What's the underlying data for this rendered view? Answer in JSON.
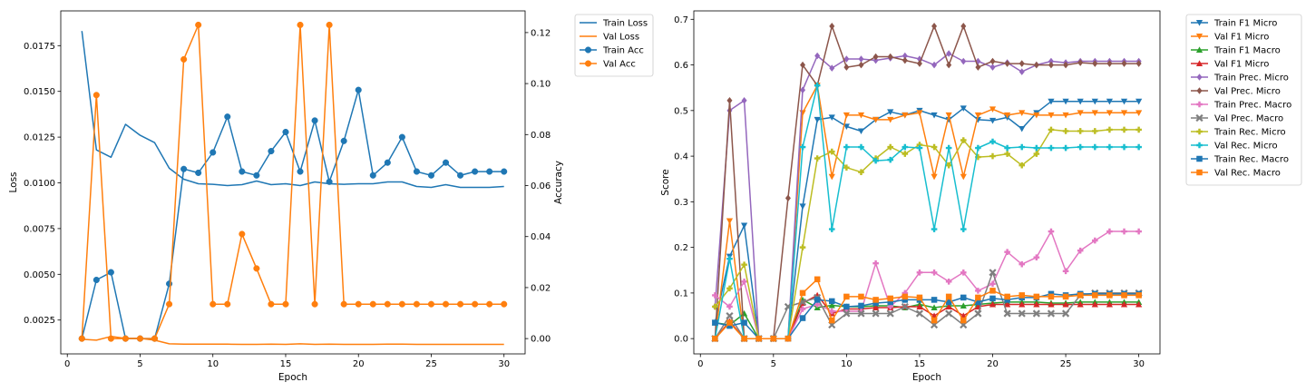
{
  "chart_data": [
    {
      "type": "line",
      "xlabel": "Epoch",
      "ylabel": "Loss",
      "y2label": "Accuracy",
      "xlim": [
        -0.45,
        31.45
      ],
      "ylim": [
        0.00065,
        0.0194
      ],
      "y2lim": [
        -0.006,
        0.1285
      ],
      "xticks": [
        0,
        5,
        10,
        15,
        20,
        25,
        30
      ],
      "yticks": [
        0.0025,
        0.005,
        0.0075,
        0.01,
        0.0125,
        0.015,
        0.0175
      ],
      "ytick_labels": [
        "0.0025",
        "0.0050",
        "0.0075",
        "0.0100",
        "0.0125",
        "0.0150",
        "0.0175"
      ],
      "y2ticks": [
        0.0,
        0.02,
        0.04,
        0.06,
        0.08,
        0.1,
        0.12
      ],
      "y2tick_labels": [
        "0.00",
        "0.02",
        "0.04",
        "0.06",
        "0.08",
        "0.10",
        "0.12"
      ],
      "legend_position": "outside-right-top",
      "x": [
        1,
        2,
        3,
        4,
        5,
        6,
        7,
        8,
        9,
        10,
        11,
        12,
        13,
        14,
        15,
        16,
        17,
        18,
        19,
        20,
        21,
        22,
        23,
        24,
        25,
        26,
        27,
        28,
        29,
        30
      ],
      "series": [
        {
          "name": "Train Loss",
          "axis": "left",
          "color": "#1f77b4",
          "marker": "none",
          "values": [
            0.0183,
            0.0118,
            0.0114,
            0.0132,
            0.0126,
            0.0122,
            0.0108,
            0.0102,
            0.00995,
            0.00992,
            0.00985,
            0.0099,
            0.0101,
            0.0099,
            0.00995,
            0.00985,
            0.01005,
            0.00995,
            0.00992,
            0.00995,
            0.00995,
            0.01005,
            0.01005,
            0.0098,
            0.00975,
            0.0099,
            0.00975,
            0.00975,
            0.00975,
            0.0098
          ]
        },
        {
          "name": "Val Loss",
          "axis": "left",
          "color": "#ff7f0e",
          "marker": "none",
          "values": [
            0.00145,
            0.0014,
            0.0016,
            0.0015,
            0.0015,
            0.0014,
            0.0012,
            0.00118,
            0.00118,
            0.00118,
            0.00118,
            0.00117,
            0.00117,
            0.00118,
            0.00117,
            0.0012,
            0.00117,
            0.00118,
            0.00117,
            0.00117,
            0.00117,
            0.00118,
            0.00118,
            0.00117,
            0.00117,
            0.00117,
            0.00117,
            0.00117,
            0.00117,
            0.00117
          ]
        },
        {
          "name": "Train Acc",
          "axis": "right",
          "color": "#1f77b4",
          "marker": "circle",
          "values": [
            0.0,
            0.023,
            0.026,
            0.0,
            0.0,
            0.0,
            0.0215,
            0.0665,
            0.065,
            0.073,
            0.087,
            0.0655,
            0.064,
            0.0735,
            0.081,
            0.0655,
            0.0855,
            0.0615,
            0.0775,
            0.0975,
            0.064,
            0.069,
            0.079,
            0.0655,
            0.064,
            0.069,
            0.064,
            0.0655,
            0.0655,
            0.0655
          ]
        },
        {
          "name": "Val Acc",
          "axis": "right",
          "color": "#ff7f0e",
          "marker": "circle",
          "values": [
            0.0,
            0.0955,
            0.0,
            0.0,
            0.0,
            0.0,
            0.0135,
            0.1095,
            0.123,
            0.0135,
            0.0135,
            0.041,
            0.0275,
            0.0135,
            0.0135,
            0.123,
            0.0135,
            0.123,
            0.0135,
            0.0135,
            0.0135,
            0.0135,
            0.0135,
            0.0135,
            0.0135,
            0.0135,
            0.0135,
            0.0135,
            0.0135,
            0.0135
          ]
        }
      ]
    },
    {
      "type": "line",
      "xlabel": "Epoch",
      "ylabel": "Score",
      "xlim": [
        -0.45,
        31.45
      ],
      "ylim": [
        -0.0335,
        0.7185
      ],
      "xticks": [
        0,
        5,
        10,
        15,
        20,
        25,
        30
      ],
      "yticks": [
        0.0,
        0.1,
        0.2,
        0.3,
        0.4,
        0.5,
        0.6,
        0.7
      ],
      "ytick_labels": [
        "0.0",
        "0.1",
        "0.2",
        "0.3",
        "0.4",
        "0.5",
        "0.6",
        "0.7"
      ],
      "legend_position": "outside-right-top",
      "x": [
        1,
        2,
        3,
        4,
        5,
        6,
        7,
        8,
        9,
        10,
        11,
        12,
        13,
        14,
        15,
        16,
        17,
        18,
        19,
        20,
        21,
        22,
        23,
        24,
        25,
        26,
        27,
        28,
        29,
        30
      ],
      "series": [
        {
          "name": "Train F1 Micro",
          "color": "#1f77b4",
          "marker": "tri_down",
          "values": [
            0.035,
            0.18,
            0.248,
            0.0,
            0.0,
            0.0,
            0.29,
            0.48,
            0.485,
            0.465,
            0.455,
            0.48,
            0.497,
            0.49,
            0.5,
            0.49,
            0.48,
            0.505,
            0.48,
            0.478,
            0.485,
            0.46,
            0.495,
            0.52,
            0.52,
            0.52,
            0.52,
            0.52,
            0.52,
            0.52
          ]
        },
        {
          "name": "Val F1 Micro",
          "color": "#ff7f0e",
          "marker": "tri_down",
          "values": [
            0.0,
            0.258,
            0.0,
            0.0,
            0.0,
            0.0,
            0.495,
            0.555,
            0.355,
            0.49,
            0.49,
            0.48,
            0.48,
            0.49,
            0.495,
            0.355,
            0.49,
            0.355,
            0.49,
            0.503,
            0.49,
            0.495,
            0.49,
            0.49,
            0.49,
            0.495,
            0.495,
            0.495,
            0.495,
            0.495
          ]
        },
        {
          "name": "Train F1 Macro",
          "color": "#2ca02c",
          "marker": "tri_up",
          "values": [
            0.035,
            0.03,
            0.055,
            0.0,
            0.0,
            0.0,
            0.085,
            0.068,
            0.073,
            0.07,
            0.07,
            0.072,
            0.072,
            0.068,
            0.075,
            0.068,
            0.072,
            0.072,
            0.075,
            0.078,
            0.08,
            0.08,
            0.08,
            0.078,
            0.078,
            0.08,
            0.08,
            0.08,
            0.08,
            0.08
          ]
        },
        {
          "name": "Val F1 Micro",
          "color": "#d62728",
          "marker": "tri_up",
          "values": [
            0.0,
            0.038,
            0.0,
            0.0,
            0.0,
            0.0,
            0.078,
            0.095,
            0.055,
            0.065,
            0.065,
            0.068,
            0.068,
            0.07,
            0.07,
            0.05,
            0.07,
            0.05,
            0.07,
            0.075,
            0.075,
            0.075,
            0.075,
            0.075,
            0.075,
            0.075,
            0.075,
            0.075,
            0.075,
            0.075
          ]
        },
        {
          "name": "Train Prec. Micro",
          "color": "#9467bd",
          "marker": "diamond",
          "values": [
            0.07,
            0.5,
            0.522,
            0.0,
            0.0,
            0.0,
            0.545,
            0.62,
            0.593,
            0.613,
            0.613,
            0.61,
            0.615,
            0.62,
            0.613,
            0.6,
            0.625,
            0.608,
            0.608,
            0.595,
            0.605,
            0.585,
            0.6,
            0.608,
            0.605,
            0.608,
            0.608,
            0.608,
            0.608,
            0.608
          ]
        },
        {
          "name": "Val Prec. Micro",
          "color": "#8c564b",
          "marker": "diamond",
          "values": [
            0.0,
            0.522,
            0.0,
            0.0,
            0.0,
            0.308,
            0.6,
            0.555,
            0.685,
            0.595,
            0.6,
            0.618,
            0.618,
            0.61,
            0.603,
            0.685,
            0.6,
            0.685,
            0.595,
            0.608,
            0.603,
            0.603,
            0.6,
            0.6,
            0.6,
            0.605,
            0.603,
            0.603,
            0.603,
            0.603
          ]
        },
        {
          "name": "Train Prec. Macro",
          "color": "#e377c2",
          "marker": "plus",
          "values": [
            0.095,
            0.07,
            0.125,
            0.0,
            0.0,
            0.0,
            0.065,
            0.075,
            0.06,
            0.06,
            0.06,
            0.165,
            0.07,
            0.1,
            0.145,
            0.145,
            0.125,
            0.145,
            0.105,
            0.12,
            0.19,
            0.163,
            0.178,
            0.235,
            0.148,
            0.193,
            0.215,
            0.235,
            0.235,
            0.235
          ]
        },
        {
          "name": "Val Prec. Macro",
          "color": "#7f7f7f",
          "marker": "x",
          "values": [
            0.0,
            0.05,
            0.0,
            0.0,
            0.0,
            0.07,
            0.08,
            0.09,
            0.03,
            0.055,
            0.055,
            0.055,
            0.055,
            0.07,
            0.055,
            0.03,
            0.055,
            0.03,
            0.055,
            0.145,
            0.055,
            0.055,
            0.055,
            0.055,
            0.055,
            0.095,
            0.1,
            0.1,
            0.1,
            0.1
          ]
        },
        {
          "name": "Train Rec. Micro",
          "color": "#bcbd22",
          "marker": "plus",
          "values": [
            0.07,
            0.11,
            0.162,
            0.0,
            0.0,
            0.0,
            0.2,
            0.395,
            0.41,
            0.375,
            0.365,
            0.395,
            0.42,
            0.405,
            0.425,
            0.42,
            0.38,
            0.435,
            0.398,
            0.4,
            0.405,
            0.38,
            0.405,
            0.458,
            0.455,
            0.455,
            0.455,
            0.458,
            0.458,
            0.458
          ]
        },
        {
          "name": "Val Rec. Micro",
          "color": "#17becf",
          "marker": "plus",
          "values": [
            0.0,
            0.175,
            0.0,
            0.0,
            0.0,
            0.0,
            0.42,
            0.555,
            0.24,
            0.42,
            0.42,
            0.39,
            0.392,
            0.42,
            0.418,
            0.24,
            0.418,
            0.24,
            0.418,
            0.432,
            0.418,
            0.42,
            0.418,
            0.418,
            0.418,
            0.42,
            0.42,
            0.42,
            0.42,
            0.42
          ]
        },
        {
          "name": "Train Rec. Macro",
          "color": "#1f77b4",
          "marker": "square",
          "values": [
            0.035,
            0.028,
            0.035,
            0.0,
            0.0,
            0.0,
            0.045,
            0.085,
            0.082,
            0.07,
            0.072,
            0.078,
            0.08,
            0.085,
            0.085,
            0.085,
            0.08,
            0.09,
            0.08,
            0.088,
            0.085,
            0.09,
            0.09,
            0.098,
            0.095,
            0.098,
            0.098,
            0.098,
            0.098,
            0.098
          ]
        },
        {
          "name": "Val Rec. Macro",
          "color": "#ff7f0e",
          "marker": "square",
          "values": [
            0.0,
            0.035,
            0.0,
            0.0,
            0.0,
            0.0,
            0.1,
            0.13,
            0.04,
            0.092,
            0.092,
            0.085,
            0.088,
            0.092,
            0.09,
            0.04,
            0.092,
            0.04,
            0.09,
            0.105,
            0.092,
            0.095,
            0.092,
            0.092,
            0.092,
            0.095,
            0.095,
            0.095,
            0.095,
            0.095
          ]
        }
      ]
    }
  ]
}
